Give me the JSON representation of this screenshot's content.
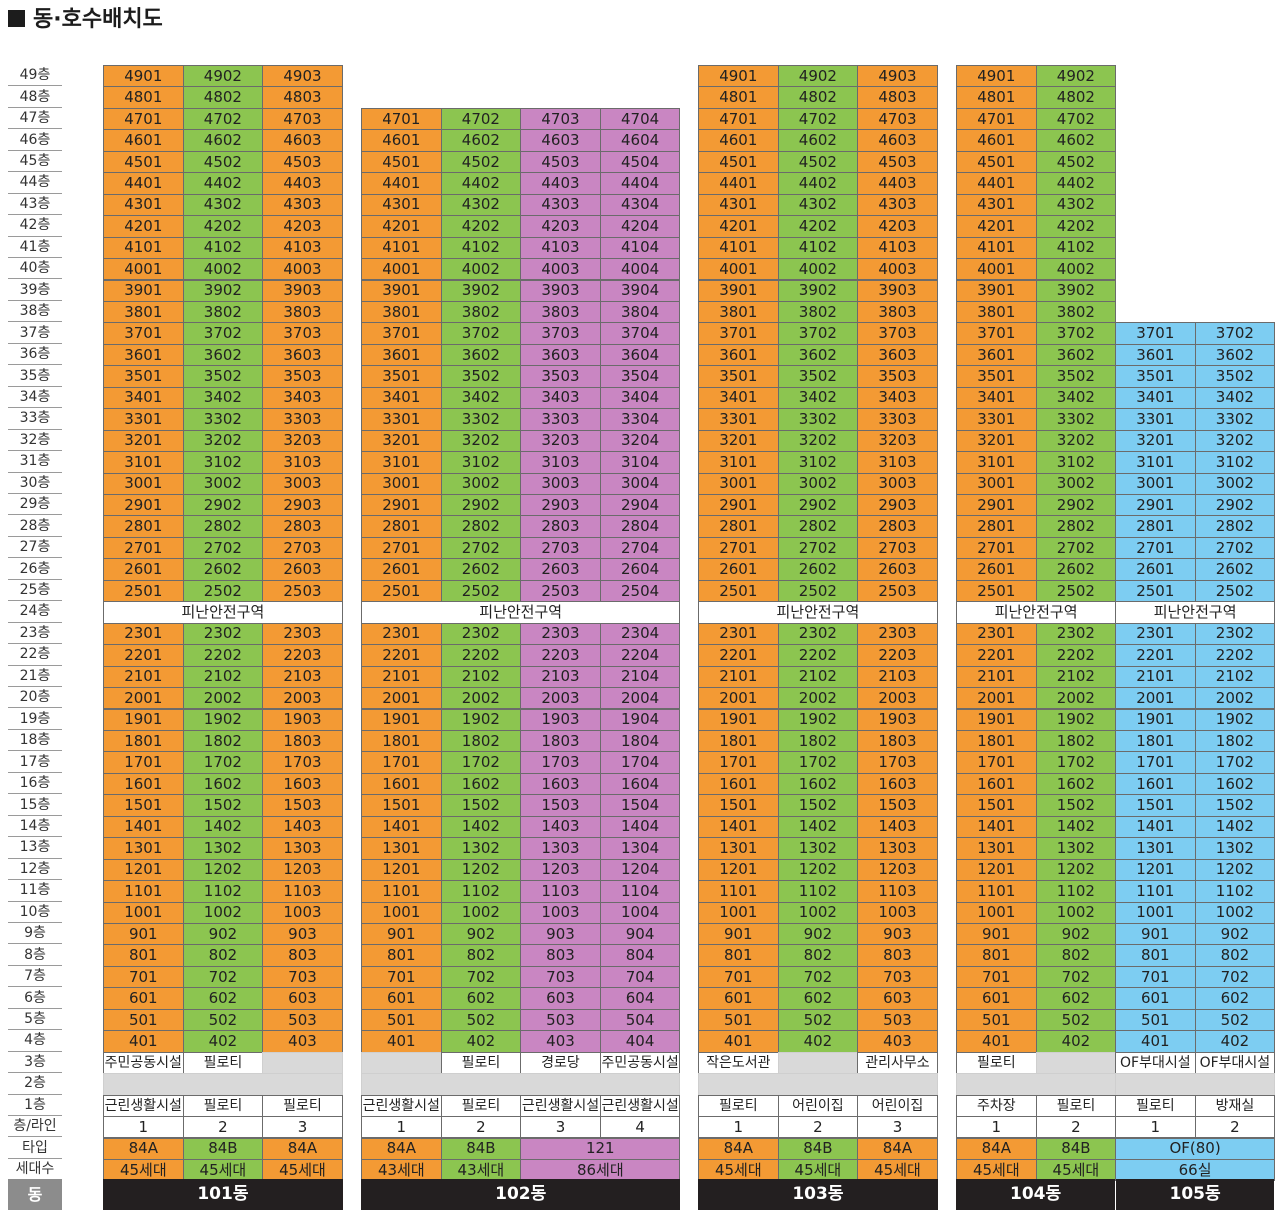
{
  "title": "동·호수배치도",
  "colors": {
    "orange": "#f39a34",
    "green": "#8cc550",
    "pink": "#c986c2",
    "blue": "#7dcdf2",
    "gray": "#d9d9d9",
    "white": "#ffffff",
    "dark": "#231f20"
  },
  "labels": {
    "refuge": "피난안전구역",
    "floor_line": "층/라인",
    "type": "타입",
    "households": "세대수",
    "dong": "동"
  },
  "floor_suffix": "층",
  "buildings": [
    {
      "name": "101동",
      "top": 49,
      "line_colors": [
        "orange",
        "green",
        "orange"
      ],
      "floor3": [
        "주민공동시설",
        "필로티",
        ""
      ],
      "floor1": [
        "근린생활시설",
        "필로티",
        "필로티"
      ],
      "types": [
        {
          "label": "84A",
          "span": 1,
          "color": "orange"
        },
        {
          "label": "84B",
          "span": 1,
          "color": "green"
        },
        {
          "label": "84A",
          "span": 1,
          "color": "orange"
        }
      ],
      "counts": [
        {
          "label": "45세대",
          "span": 1,
          "color": "orange"
        },
        {
          "label": "45세대",
          "span": 1,
          "color": "green"
        },
        {
          "label": "45세대",
          "span": 1,
          "color": "orange"
        }
      ]
    },
    {
      "name": "102동",
      "top": 47,
      "line_colors": [
        "orange",
        "green",
        "pink",
        "pink"
      ],
      "floor3": [
        "",
        "필로티",
        "경로당",
        "주민공동시설"
      ],
      "floor1": [
        "근린생활시설",
        "필로티",
        "근린생활시설",
        "근린생활시설"
      ],
      "types": [
        {
          "label": "84A",
          "span": 1,
          "color": "orange"
        },
        {
          "label": "84B",
          "span": 1,
          "color": "green"
        },
        {
          "label": "121",
          "span": 2,
          "color": "pink"
        }
      ],
      "counts": [
        {
          "label": "43세대",
          "span": 1,
          "color": "orange"
        },
        {
          "label": "43세대",
          "span": 1,
          "color": "green"
        },
        {
          "label": "86세대",
          "span": 2,
          "color": "pink"
        }
      ]
    },
    {
      "name": "103동",
      "top": 49,
      "line_colors": [
        "orange",
        "green",
        "orange"
      ],
      "floor3": [
        "작은도서관",
        "",
        "관리사무소"
      ],
      "floor1": [
        "필로티",
        "어린이집",
        "어린이집"
      ],
      "types": [
        {
          "label": "84A",
          "span": 1,
          "color": "orange"
        },
        {
          "label": "84B",
          "span": 1,
          "color": "green"
        },
        {
          "label": "84A",
          "span": 1,
          "color": "orange"
        }
      ],
      "counts": [
        {
          "label": "45세대",
          "span": 1,
          "color": "orange"
        },
        {
          "label": "45세대",
          "span": 1,
          "color": "green"
        },
        {
          "label": "45세대",
          "span": 1,
          "color": "orange"
        }
      ]
    },
    {
      "name": "104동",
      "top": 49,
      "line_colors": [
        "orange",
        "green"
      ],
      "floor3": [
        "필로티",
        ""
      ],
      "floor1": [
        "주차장",
        "필로티"
      ],
      "types": [
        {
          "label": "84A",
          "span": 1,
          "color": "orange"
        },
        {
          "label": "84B",
          "span": 1,
          "color": "green"
        }
      ],
      "counts": [
        {
          "label": "45세대",
          "span": 1,
          "color": "orange"
        },
        {
          "label": "45세대",
          "span": 1,
          "color": "green"
        }
      ]
    },
    {
      "name": "105동",
      "top": 37,
      "line_colors": [
        "blue",
        "blue"
      ],
      "floor3": [
        "OF부대시설",
        "OF부대시설"
      ],
      "floor1": [
        "필로티",
        "방재실"
      ],
      "types": [
        {
          "label": "OF(80)",
          "span": 2,
          "color": "blue"
        }
      ],
      "counts": [
        {
          "label": "66실",
          "span": 2,
          "color": "blue"
        }
      ]
    }
  ]
}
